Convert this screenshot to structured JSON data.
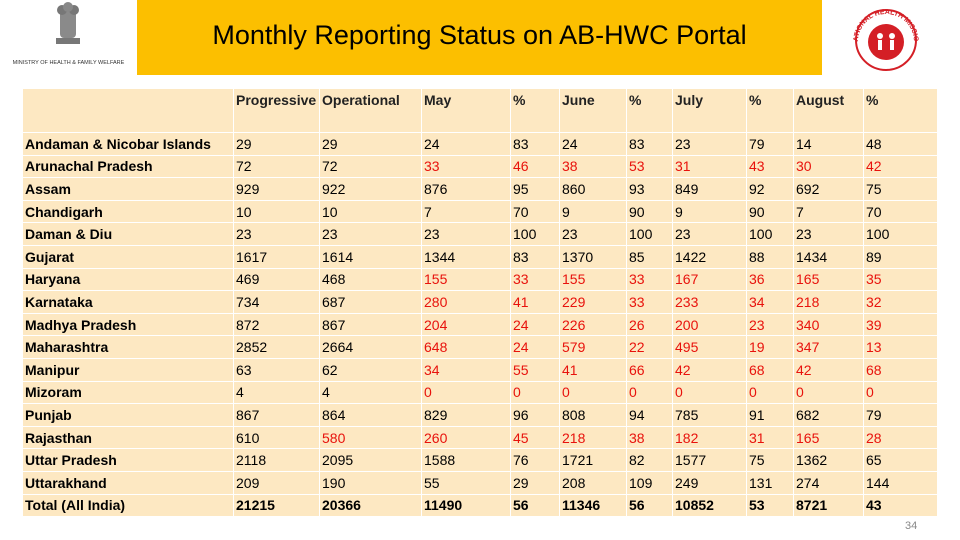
{
  "header": {
    "title": "Monthly Reporting Status on AB-HWC Portal",
    "ministry": "MINISTRY OF HEALTH & FAMILY WELFARE",
    "mission": "NATIONAL HEALTH MISSION"
  },
  "table": {
    "headers": [
      "",
      "Progressive",
      "Operational",
      "May",
      "%",
      "June",
      "%",
      "July",
      "%",
      "August",
      "%"
    ],
    "rows": [
      {
        "cells": [
          "Andaman & Nicobar Islands",
          29,
          29,
          24,
          83,
          24,
          83,
          23,
          79,
          14,
          48
        ],
        "colors": [
          "#000",
          "#000",
          "#000",
          "#000",
          "#000",
          "#000",
          "#000",
          "#000",
          "#000",
          "#000",
          "#000"
        ]
      },
      {
        "cells": [
          "Arunachal Pradesh",
          72,
          72,
          33,
          46,
          38,
          53,
          31,
          43,
          30,
          42
        ],
        "colors": [
          "#000",
          "#000",
          "#000",
          "#e8120c",
          "#e8120c",
          "#e8120c",
          "#e8120c",
          "#e8120c",
          "#e8120c",
          "#e8120c",
          "#e8120c"
        ]
      },
      {
        "cells": [
          "Assam",
          929,
          922,
          876,
          95,
          860,
          93,
          849,
          92,
          692,
          75
        ],
        "colors": [
          "#000",
          "#000",
          "#000",
          "#000",
          "#000",
          "#000",
          "#000",
          "#000",
          "#000",
          "#000",
          "#000"
        ]
      },
      {
        "cells": [
          "Chandigarh",
          10,
          10,
          7,
          70,
          9,
          90,
          9,
          90,
          7,
          70
        ],
        "colors": [
          "#000",
          "#000",
          "#000",
          "#000",
          "#000",
          "#000",
          "#000",
          "#000",
          "#000",
          "#000",
          "#000"
        ]
      },
      {
        "cells": [
          "Daman & Diu",
          23,
          23,
          23,
          100,
          23,
          100,
          23,
          100,
          23,
          100
        ],
        "colors": [
          "#000",
          "#000",
          "#000",
          "#000",
          "#000",
          "#000",
          "#000",
          "#000",
          "#000",
          "#000",
          "#000"
        ]
      },
      {
        "cells": [
          "Gujarat",
          1617,
          1614,
          1344,
          83,
          1370,
          85,
          1422,
          88,
          1434,
          89
        ],
        "colors": [
          "#000",
          "#000",
          "#000",
          "#000",
          "#000",
          "#000",
          "#000",
          "#000",
          "#000",
          "#000",
          "#000"
        ]
      },
      {
        "cells": [
          "Haryana",
          469,
          468,
          155,
          33,
          155,
          33,
          167,
          36,
          165,
          35
        ],
        "colors": [
          "#000",
          "#000",
          "#000",
          "#e8120c",
          "#e8120c",
          "#e8120c",
          "#e8120c",
          "#e8120c",
          "#e8120c",
          "#e8120c",
          "#e8120c"
        ]
      },
      {
        "cells": [
          "Karnataka",
          734,
          687,
          280,
          41,
          229,
          33,
          233,
          34,
          218,
          32
        ],
        "colors": [
          "#000",
          "#000",
          "#000",
          "#e8120c",
          "#e8120c",
          "#e8120c",
          "#e8120c",
          "#e8120c",
          "#e8120c",
          "#e8120c",
          "#e8120c"
        ]
      },
      {
        "cells": [
          "Madhya Pradesh",
          872,
          867,
          204,
          24,
          226,
          26,
          200,
          23,
          340,
          39
        ],
        "colors": [
          "#000",
          "#000",
          "#000",
          "#e8120c",
          "#e8120c",
          "#e8120c",
          "#e8120c",
          "#e8120c",
          "#e8120c",
          "#e8120c",
          "#e8120c"
        ]
      },
      {
        "cells": [
          "Maharashtra",
          2852,
          2664,
          648,
          24,
          579,
          22,
          495,
          19,
          347,
          13
        ],
        "colors": [
          "#000",
          "#000",
          "#000",
          "#e8120c",
          "#e8120c",
          "#e8120c",
          "#e8120c",
          "#e8120c",
          "#e8120c",
          "#e8120c",
          "#e8120c"
        ]
      },
      {
        "cells": [
          "Manipur",
          63,
          62,
          34,
          55,
          41,
          66,
          42,
          68,
          42,
          68
        ],
        "colors": [
          "#000",
          "#000",
          "#000",
          "#e8120c",
          "#e8120c",
          "#e8120c",
          "#e8120c",
          "#e8120c",
          "#e8120c",
          "#e8120c",
          "#e8120c"
        ]
      },
      {
        "cells": [
          "Mizoram",
          4,
          4,
          0,
          0,
          0,
          0,
          0,
          0,
          0,
          0
        ],
        "colors": [
          "#000",
          "#000",
          "#000",
          "#e8120c",
          "#e8120c",
          "#e8120c",
          "#e8120c",
          "#e8120c",
          "#e8120c",
          "#e8120c",
          "#e8120c"
        ]
      },
      {
        "cells": [
          "Punjab",
          867,
          864,
          829,
          96,
          808,
          94,
          785,
          91,
          682,
          79
        ],
        "colors": [
          "#000",
          "#000",
          "#000",
          "#000",
          "#000",
          "#000",
          "#000",
          "#000",
          "#000",
          "#000",
          "#000"
        ]
      },
      {
        "cells": [
          "Rajasthan",
          610,
          580,
          260,
          45,
          218,
          38,
          182,
          31,
          165,
          28
        ],
        "colors": [
          "#000",
          "#000",
          "#e8120c",
          "#e8120c",
          "#e8120c",
          "#e8120c",
          "#e8120c",
          "#e8120c",
          "#e8120c",
          "#e8120c",
          "#e8120c"
        ]
      },
      {
        "cells": [
          "Uttar Pradesh",
          2118,
          2095,
          1588,
          76,
          1721,
          82,
          1577,
          75,
          1362,
          65
        ],
        "colors": [
          "#000",
          "#000",
          "#000",
          "#000",
          "#000",
          "#000",
          "#000",
          "#000",
          "#000",
          "#000",
          "#000"
        ]
      },
      {
        "cells": [
          "Uttarakhand",
          209,
          190,
          55,
          29,
          208,
          109,
          249,
          131,
          274,
          144
        ],
        "colors": [
          "#000",
          "#000",
          "#000",
          "#000",
          "#000",
          "#000",
          "#000",
          "#000",
          "#000",
          "#000",
          "#000"
        ]
      },
      {
        "cells": [
          "Total (All India)",
          21215,
          20366,
          11490,
          56,
          11346,
          56,
          10852,
          53,
          8721,
          43
        ],
        "colors": [
          "#000",
          "#000",
          "#000",
          "#000",
          "#000",
          "#000",
          "#000",
          "#000",
          "#000",
          "#000",
          "#000"
        ]
      }
    ]
  },
  "page_number": 34
}
